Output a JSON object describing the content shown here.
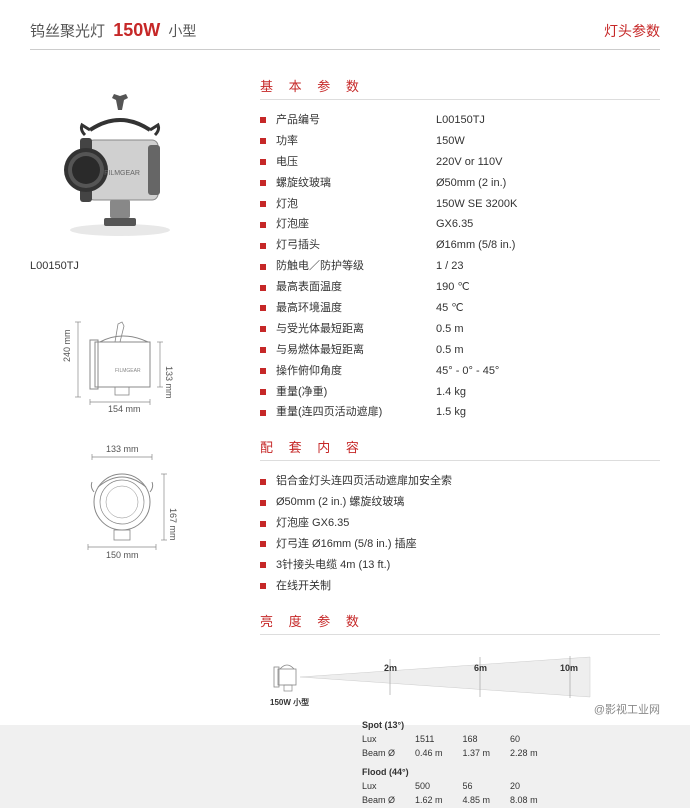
{
  "header": {
    "product_type": "钨丝聚光灯",
    "wattage": "150W",
    "size_label": "小型",
    "right_label": "灯头参数"
  },
  "product": {
    "code": "L00150TJ",
    "body_label": "FILMGEAR"
  },
  "sections": {
    "basic_params_title": "基 本 参 数",
    "accessories_title": "配 套 内 容",
    "brightness_title": "亮 度 参 数"
  },
  "specs": [
    {
      "label": "产品编号",
      "value": "L00150TJ"
    },
    {
      "label": "功率",
      "value": "150W"
    },
    {
      "label": "电压",
      "value": "220V or 110V"
    },
    {
      "label": "螺旋纹玻璃",
      "value": "Ø50mm (2 in.)"
    },
    {
      "label": "灯泡",
      "value": "150W SE 3200K"
    },
    {
      "label": "灯泡座",
      "value": "GX6.35"
    },
    {
      "label": "灯弓插头",
      "value": "Ø16mm (5/8 in.)"
    },
    {
      "label": "防触电／防护等级",
      "value": "1 / 23"
    },
    {
      "label": "最高表面温度",
      "value": "190 ℃"
    },
    {
      "label": "最高环境温度",
      "value": "45 ℃"
    },
    {
      "label": "与受光体最短距离",
      "value": "0.5 m"
    },
    {
      "label": "与易燃体最短距离",
      "value": "0.5 m"
    },
    {
      "label": "操作俯仰角度",
      "value": "45° - 0° - 45°"
    },
    {
      "label": "重量(净重)",
      "value": "1.4 kg"
    },
    {
      "label": "重量(连四页活动遮扉)",
      "value": "1.5 kg"
    }
  ],
  "accessories": [
    "铝合金灯头连四页活动遮扉加安全索",
    "Ø50mm (2 in.) 螺旋纹玻璃",
    "灯泡座 GX6.35",
    "灯弓连 Ø16mm (5/8 in.) 插座",
    "3针接头电缆 4m (13 ft.)",
    "在线开关制"
  ],
  "dimensions": {
    "side_height": "240 mm",
    "side_width": "154 mm",
    "side_depth": "133 mm",
    "front_width_top": "133 mm",
    "front_width_bottom": "150 mm",
    "front_height": "167 mm"
  },
  "brightness": {
    "lamp_label": "150W 小型",
    "distances": [
      "2m",
      "6m",
      "10m"
    ],
    "spot_label": "Spot (13°)",
    "flood_label": "Flood (44°)",
    "lux_label": "Lux",
    "beam_label": "Beam Ø",
    "spot_lux": [
      "1511",
      "168",
      "60"
    ],
    "spot_beam": [
      "0.46 m",
      "1.37 m",
      "2.28 m"
    ],
    "flood_lux": [
      "500",
      "56",
      "20"
    ],
    "flood_beam": [
      "1.62 m",
      "4.85 m",
      "8.08 m"
    ]
  },
  "footer": "@影视工业网",
  "colors": {
    "accent": "#c62828",
    "text": "#333333",
    "border": "#dddddd"
  }
}
